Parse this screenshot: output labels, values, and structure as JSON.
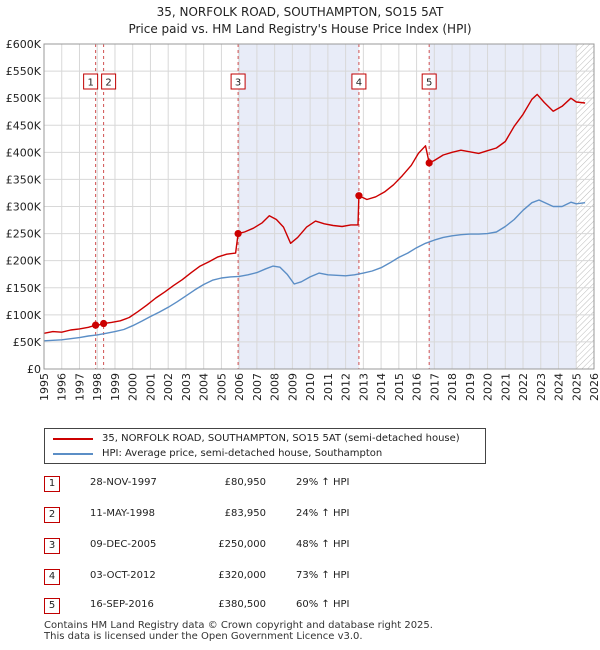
{
  "chart_data": {
    "type": "line",
    "title": "35, NORFOLK ROAD, SOUTHAMPTON, SO15 5AT",
    "subtitle": "Price paid vs. HM Land Registry's House Price Index (HPI)",
    "xlabel": "",
    "ylabel": "",
    "xlim": [
      1995,
      2026
    ],
    "ylim": [
      0,
      600000
    ],
    "y_ticks": [
      {
        "value": 0,
        "label": "£0"
      },
      {
        "value": 50000,
        "label": "£50K"
      },
      {
        "value": 100000,
        "label": "£100K"
      },
      {
        "value": 150000,
        "label": "£150K"
      },
      {
        "value": 200000,
        "label": "£200K"
      },
      {
        "value": 250000,
        "label": "£250K"
      },
      {
        "value": 300000,
        "label": "£300K"
      },
      {
        "value": 350000,
        "label": "£350K"
      },
      {
        "value": 400000,
        "label": "£400K"
      },
      {
        "value": 450000,
        "label": "£450K"
      },
      {
        "value": 500000,
        "label": "£500K"
      },
      {
        "value": 550000,
        "label": "£550K"
      },
      {
        "value": 600000,
        "label": "£600K"
      }
    ],
    "x_ticks": [
      "1995",
      "1996",
      "1997",
      "1998",
      "1999",
      "2000",
      "2001",
      "2002",
      "2003",
      "2004",
      "2005",
      "2006",
      "2007",
      "2008",
      "2009",
      "2010",
      "2011",
      "2012",
      "2013",
      "2014",
      "2015",
      "2016",
      "2017",
      "2018",
      "2019",
      "2020",
      "2021",
      "2022",
      "2023",
      "2024",
      "2025",
      "2026"
    ],
    "grid": true,
    "shaded_ranges": [
      [
        2005.94,
        2012.75
      ],
      [
        2016.71,
        2025.0
      ]
    ],
    "future_hatch_from": 2025.0,
    "series": [
      {
        "name": "35, NORFOLK ROAD, SOUTHAMPTON, SO15 5AT (semi-detached house)",
        "color": "#cc0000",
        "points": [
          [
            1995.0,
            66000
          ],
          [
            1995.5,
            69000
          ],
          [
            1996.0,
            68000
          ],
          [
            1996.5,
            72000
          ],
          [
            1997.0,
            74000
          ],
          [
            1997.5,
            77000
          ],
          [
            1997.91,
            80950
          ],
          [
            1998.1,
            81500
          ],
          [
            1998.36,
            83950
          ],
          [
            1998.8,
            86000
          ],
          [
            1999.3,
            89000
          ],
          [
            1999.8,
            95000
          ],
          [
            2000.3,
            106000
          ],
          [
            2000.8,
            118000
          ],
          [
            2001.3,
            131000
          ],
          [
            2001.8,
            142000
          ],
          [
            2002.3,
            154000
          ],
          [
            2002.8,
            165000
          ],
          [
            2003.3,
            178000
          ],
          [
            2003.8,
            190000
          ],
          [
            2004.3,
            198000
          ],
          [
            2004.8,
            207000
          ],
          [
            2005.3,
            212000
          ],
          [
            2005.8,
            214000
          ],
          [
            2005.94,
            250000
          ],
          [
            2006.3,
            253000
          ],
          [
            2006.8,
            260000
          ],
          [
            2007.3,
            270000
          ],
          [
            2007.7,
            283000
          ],
          [
            2008.1,
            276000
          ],
          [
            2008.5,
            262000
          ],
          [
            2008.9,
            232000
          ],
          [
            2009.3,
            243000
          ],
          [
            2009.8,
            262000
          ],
          [
            2010.3,
            273000
          ],
          [
            2010.8,
            268000
          ],
          [
            2011.3,
            265000
          ],
          [
            2011.8,
            263000
          ],
          [
            2012.3,
            266000
          ],
          [
            2012.7,
            266000
          ],
          [
            2012.75,
            320000
          ],
          [
            2013.2,
            313000
          ],
          [
            2013.7,
            318000
          ],
          [
            2014.2,
            327000
          ],
          [
            2014.7,
            340000
          ],
          [
            2015.2,
            357000
          ],
          [
            2015.7,
            376000
          ],
          [
            2016.1,
            398000
          ],
          [
            2016.5,
            412000
          ],
          [
            2016.71,
            380500
          ],
          [
            2017.0,
            385000
          ],
          [
            2017.5,
            395000
          ],
          [
            2018.0,
            400000
          ],
          [
            2018.5,
            404000
          ],
          [
            2019.0,
            401000
          ],
          [
            2019.5,
            398000
          ],
          [
            2020.0,
            403000
          ],
          [
            2020.5,
            408000
          ],
          [
            2021.0,
            420000
          ],
          [
            2021.5,
            448000
          ],
          [
            2022.0,
            470000
          ],
          [
            2022.5,
            498000
          ],
          [
            2022.8,
            507000
          ],
          [
            2023.2,
            492000
          ],
          [
            2023.7,
            476000
          ],
          [
            2024.2,
            485000
          ],
          [
            2024.7,
            500000
          ],
          [
            2025.0,
            493000
          ],
          [
            2025.5,
            491000
          ]
        ]
      },
      {
        "name": "HPI: Average price, semi-detached house, Southampton",
        "color": "#5b8ec6",
        "points": [
          [
            1995.0,
            52000
          ],
          [
            1995.5,
            53000
          ],
          [
            1996.0,
            54000
          ],
          [
            1996.5,
            56000
          ],
          [
            1997.0,
            58000
          ],
          [
            1997.5,
            61000
          ],
          [
            1998.0,
            63000
          ],
          [
            1998.5,
            66000
          ],
          [
            1999.0,
            69000
          ],
          [
            1999.5,
            73000
          ],
          [
            2000.0,
            80000
          ],
          [
            2000.5,
            88000
          ],
          [
            2001.0,
            97000
          ],
          [
            2001.5,
            105000
          ],
          [
            2002.0,
            114000
          ],
          [
            2002.5,
            124000
          ],
          [
            2003.0,
            135000
          ],
          [
            2003.5,
            146000
          ],
          [
            2004.0,
            156000
          ],
          [
            2004.5,
            164000
          ],
          [
            2005.0,
            168000
          ],
          [
            2005.5,
            170000
          ],
          [
            2006.0,
            171000
          ],
          [
            2006.5,
            174000
          ],
          [
            2007.0,
            178000
          ],
          [
            2007.5,
            185000
          ],
          [
            2007.9,
            190000
          ],
          [
            2008.3,
            188000
          ],
          [
            2008.7,
            175000
          ],
          [
            2009.1,
            157000
          ],
          [
            2009.5,
            161000
          ],
          [
            2010.0,
            170000
          ],
          [
            2010.5,
            177000
          ],
          [
            2011.0,
            174000
          ],
          [
            2011.5,
            173000
          ],
          [
            2012.0,
            172000
          ],
          [
            2012.5,
            174000
          ],
          [
            2013.0,
            177000
          ],
          [
            2013.5,
            181000
          ],
          [
            2014.0,
            187000
          ],
          [
            2014.5,
            196000
          ],
          [
            2015.0,
            206000
          ],
          [
            2015.5,
            214000
          ],
          [
            2016.0,
            224000
          ],
          [
            2016.5,
            232000
          ],
          [
            2017.0,
            238000
          ],
          [
            2017.5,
            243000
          ],
          [
            2018.0,
            246000
          ],
          [
            2018.5,
            248000
          ],
          [
            2019.0,
            249000
          ],
          [
            2019.5,
            249000
          ],
          [
            2020.0,
            250000
          ],
          [
            2020.5,
            253000
          ],
          [
            2021.0,
            263000
          ],
          [
            2021.5,
            276000
          ],
          [
            2022.0,
            293000
          ],
          [
            2022.5,
            307000
          ],
          [
            2022.9,
            312000
          ],
          [
            2023.3,
            306000
          ],
          [
            2023.7,
            300000
          ],
          [
            2024.2,
            300000
          ],
          [
            2024.7,
            308000
          ],
          [
            2025.0,
            305000
          ],
          [
            2025.5,
            307000
          ]
        ]
      }
    ],
    "markers": [
      {
        "label": "1",
        "x": 1997.91,
        "y": 80950
      },
      {
        "label": "2",
        "x": 1998.36,
        "y": 83950
      },
      {
        "label": "3",
        "x": 2005.94,
        "y": 250000
      },
      {
        "label": "4",
        "x": 2012.75,
        "y": 320000
      },
      {
        "label": "5",
        "x": 2016.71,
        "y": 380500
      }
    ]
  },
  "legend": {
    "property_label": "35, NORFOLK ROAD, SOUTHAMPTON, SO15 5AT (semi-detached house)",
    "hpi_label": "HPI: Average price, semi-detached house, Southampton"
  },
  "sales": [
    {
      "num": "1",
      "date": "28-NOV-1997",
      "price": "£80,950",
      "hpi": "29% ↑ HPI"
    },
    {
      "num": "2",
      "date": "11-MAY-1998",
      "price": "£83,950",
      "hpi": "24% ↑ HPI"
    },
    {
      "num": "3",
      "date": "09-DEC-2005",
      "price": "£250,000",
      "hpi": "48% ↑ HPI"
    },
    {
      "num": "4",
      "date": "03-OCT-2012",
      "price": "£320,000",
      "hpi": "73% ↑ HPI"
    },
    {
      "num": "5",
      "date": "16-SEP-2016",
      "price": "£380,500",
      "hpi": "60% ↑ HPI"
    }
  ],
  "footer": {
    "line1": "Contains HM Land Registry data © Crown copyright and database right 2025.",
    "line2": "This data is licensed under the Open Government Licence v3.0."
  },
  "colors": {
    "property": "#cc0000",
    "hpi": "#5b8ec6",
    "shade": "#e8ecf8",
    "grid": "#d8d8d8",
    "marker_border": "#c00000"
  }
}
